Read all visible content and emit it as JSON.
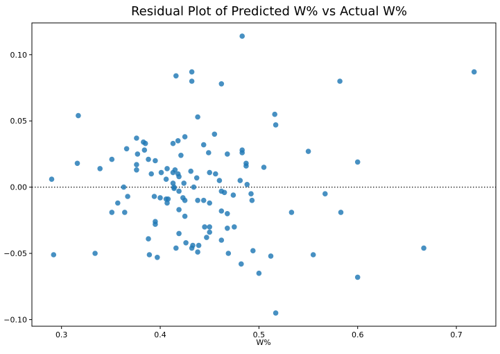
{
  "chart_data": {
    "type": "scatter",
    "title": "Residual Plot of Predicted W% vs Actual W%",
    "xlabel": "W%",
    "ylabel": "",
    "xlim": [
      0.27,
      0.74
    ],
    "ylim": [
      -0.105,
      0.124
    ],
    "xticks": [
      "0.3",
      "0.4",
      "0.5",
      "0.6",
      "0.7"
    ],
    "xtick_values": [
      0.3,
      0.4,
      0.5,
      0.6,
      0.7
    ],
    "yticks": [
      "−0.10",
      "−0.05",
      "0.00",
      "0.05",
      "0.10"
    ],
    "ytick_values": [
      -0.1,
      -0.05,
      0.0,
      0.05,
      0.1
    ],
    "reference_line": {
      "y": 0.0,
      "style": "dotted",
      "color": "#333333"
    },
    "grid": false,
    "point_color": "#1f77b4",
    "points": [
      [
        0.29,
        0.006
      ],
      [
        0.292,
        -0.051
      ],
      [
        0.316,
        0.018
      ],
      [
        0.317,
        0.054
      ],
      [
        0.334,
        -0.05
      ],
      [
        0.339,
        0.014
      ],
      [
        0.351,
        0.021
      ],
      [
        0.351,
        -0.019
      ],
      [
        0.357,
        -0.012
      ],
      [
        0.363,
        0.0
      ],
      [
        0.364,
        -0.019
      ],
      [
        0.366,
        0.029
      ],
      [
        0.367,
        -0.007
      ],
      [
        0.376,
        0.037
      ],
      [
        0.376,
        0.017
      ],
      [
        0.376,
        0.013
      ],
      [
        0.377,
        0.025
      ],
      [
        0.383,
        0.034
      ],
      [
        0.384,
        0.028
      ],
      [
        0.385,
        0.033
      ],
      [
        0.388,
        0.021
      ],
      [
        0.388,
        -0.039
      ],
      [
        0.389,
        -0.051
      ],
      [
        0.391,
        0.01
      ],
      [
        0.394,
        -0.007
      ],
      [
        0.395,
        0.02
      ],
      [
        0.395,
        -0.026
      ],
      [
        0.395,
        -0.028
      ],
      [
        0.397,
        -0.053
      ],
      [
        0.4,
        -0.008
      ],
      [
        0.401,
        0.011
      ],
      [
        0.406,
        0.006
      ],
      [
        0.406,
        -0.009
      ],
      [
        0.407,
        0.014
      ],
      [
        0.407,
        -0.012
      ],
      [
        0.408,
        -0.009
      ],
      [
        0.413,
        0.033
      ],
      [
        0.413,
        0.011
      ],
      [
        0.413,
        0.003
      ],
      [
        0.414,
        -0.001
      ],
      [
        0.414,
        0.0
      ],
      [
        0.415,
        0.013
      ],
      [
        0.416,
        0.084
      ],
      [
        0.416,
        -0.046
      ],
      [
        0.418,
        0.035
      ],
      [
        0.418,
        0.01
      ],
      [
        0.419,
        0.008
      ],
      [
        0.419,
        -0.003
      ],
      [
        0.419,
        -0.017
      ],
      [
        0.419,
        -0.035
      ],
      [
        0.421,
        0.024
      ],
      [
        0.423,
        -0.008
      ],
      [
        0.424,
        0.003
      ],
      [
        0.425,
        0.038
      ],
      [
        0.425,
        -0.01
      ],
      [
        0.425,
        -0.022
      ],
      [
        0.426,
        -0.042
      ],
      [
        0.431,
        0.012
      ],
      [
        0.432,
        0.08
      ],
      [
        0.432,
        0.087
      ],
      [
        0.432,
        -0.046
      ],
      [
        0.433,
        -0.044
      ],
      [
        0.434,
        0.0
      ],
      [
        0.437,
        0.007
      ],
      [
        0.438,
        0.053
      ],
      [
        0.438,
        -0.01
      ],
      [
        0.438,
        -0.049
      ],
      [
        0.439,
        -0.044
      ],
      [
        0.444,
        0.032
      ],
      [
        0.444,
        -0.01
      ],
      [
        0.445,
        -0.03
      ],
      [
        0.447,
        -0.038
      ],
      [
        0.449,
        0.026
      ],
      [
        0.45,
        0.011
      ],
      [
        0.45,
        -0.012
      ],
      [
        0.45,
        -0.03
      ],
      [
        0.45,
        -0.034
      ],
      [
        0.455,
        0.04
      ],
      [
        0.456,
        0.01
      ],
      [
        0.46,
        0.005
      ],
      [
        0.462,
        0.078
      ],
      [
        0.462,
        -0.003
      ],
      [
        0.462,
        -0.018
      ],
      [
        0.462,
        -0.04
      ],
      [
        0.465,
        -0.004
      ],
      [
        0.468,
        0.025
      ],
      [
        0.468,
        -0.02
      ],
      [
        0.468,
        -0.031
      ],
      [
        0.469,
        -0.05
      ],
      [
        0.474,
        -0.006
      ],
      [
        0.475,
        -0.03
      ],
      [
        0.481,
        0.005
      ],
      [
        0.482,
        -0.058
      ],
      [
        0.483,
        0.114
      ],
      [
        0.483,
        0.028
      ],
      [
        0.483,
        0.026
      ],
      [
        0.487,
        0.018
      ],
      [
        0.487,
        0.016
      ],
      [
        0.488,
        0.002
      ],
      [
        0.492,
        -0.005
      ],
      [
        0.493,
        -0.01
      ],
      [
        0.494,
        -0.048
      ],
      [
        0.5,
        -0.065
      ],
      [
        0.505,
        0.015
      ],
      [
        0.512,
        -0.052
      ],
      [
        0.516,
        0.055
      ],
      [
        0.517,
        0.047
      ],
      [
        0.517,
        -0.095
      ],
      [
        0.533,
        -0.019
      ],
      [
        0.55,
        0.027
      ],
      [
        0.555,
        -0.051
      ],
      [
        0.567,
        -0.005
      ],
      [
        0.582,
        0.08
      ],
      [
        0.583,
        -0.019
      ],
      [
        0.6,
        0.019
      ],
      [
        0.6,
        -0.068
      ],
      [
        0.667,
        -0.046
      ],
      [
        0.718,
        0.087
      ]
    ]
  }
}
